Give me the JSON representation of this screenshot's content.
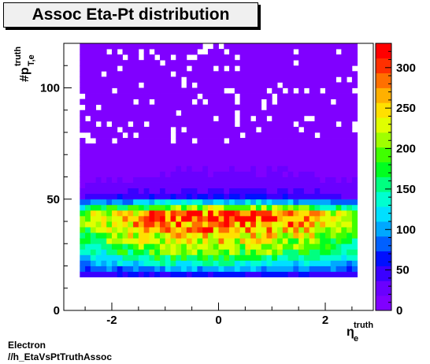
{
  "title": "Assoc Eta-Pt distribution",
  "footer": {
    "line1": "Electron",
    "line2": "//h_EtaVsPtTruthAssoc"
  },
  "chart_data": {
    "type": "heatmap",
    "title": "Assoc Eta-Pt distribution",
    "xlabel": {
      "base": "η",
      "sup": "truth",
      "sub": "e"
    },
    "ylabel": {
      "base": "#p",
      "sup": "truth",
      "sub": "T,e"
    },
    "xlim": [
      -2.9,
      2.9
    ],
    "ylim": [
      0,
      120
    ],
    "xticks": [
      -2,
      0,
      2
    ],
    "yticks": [
      0,
      50,
      100
    ],
    "z_range": [
      0,
      330
    ],
    "z_ticks": [
      0,
      50,
      100,
      150,
      200,
      250,
      300
    ],
    "x_binning": {
      "min": -2.6,
      "max": 2.6,
      "nbins": 52
    },
    "y_binning": {
      "min": 15,
      "max": 120,
      "nbins": 42
    },
    "y_profile": [
      {
        "y": 16,
        "z": 50
      },
      {
        "y": 18,
        "z": 90
      },
      {
        "y": 20,
        "z": 110
      },
      {
        "y": 22,
        "z": 140
      },
      {
        "y": 24,
        "z": 160
      },
      {
        "y": 26,
        "z": 180
      },
      {
        "y": 28,
        "z": 195
      },
      {
        "y": 30,
        "z": 210
      },
      {
        "y": 32,
        "z": 225
      },
      {
        "y": 34,
        "z": 240
      },
      {
        "y": 36,
        "z": 250
      },
      {
        "y": 38,
        "z": 265
      },
      {
        "y": 40,
        "z": 275
      },
      {
        "y": 42,
        "z": 285
      },
      {
        "y": 44,
        "z": 265
      },
      {
        "y": 46,
        "z": 200
      },
      {
        "y": 48,
        "z": 140
      },
      {
        "y": 50,
        "z": 60
      },
      {
        "y": 55,
        "z": 30
      },
      {
        "y": 60,
        "z": 20
      },
      {
        "y": 70,
        "z": 10
      },
      {
        "y": 80,
        "z": 6
      },
      {
        "y": 100,
        "z": 3
      },
      {
        "y": 120,
        "z": 1
      }
    ],
    "eta_profile": [
      {
        "eta": -2.6,
        "w": 0.72
      },
      {
        "eta": -2.4,
        "w": 0.78
      },
      {
        "eta": -2.0,
        "w": 0.88
      },
      {
        "eta": -1.5,
        "w": 0.97
      },
      {
        "eta": -1.0,
        "w": 1.04
      },
      {
        "eta": -0.5,
        "w": 1.07
      },
      {
        "eta": 0.0,
        "w": 1.08
      },
      {
        "eta": 0.5,
        "w": 1.07
      },
      {
        "eta": 1.0,
        "w": 1.04
      },
      {
        "eta": 1.5,
        "w": 0.97
      },
      {
        "eta": 2.0,
        "w": 0.88
      },
      {
        "eta": 2.4,
        "w": 0.78
      },
      {
        "eta": 2.6,
        "w": 0.72
      }
    ],
    "palette": [
      "#8000ff",
      "#6a00ff",
      "#3a00ff",
      "#0010ff",
      "#0060ff",
      "#00a8ff",
      "#00e0ff",
      "#00ffd0",
      "#00ff80",
      "#00ff20",
      "#40ff00",
      "#a0ff00",
      "#e0ff00",
      "#ffe000",
      "#ffb000",
      "#ff7000",
      "#ff3000",
      "#ff0000"
    ]
  }
}
